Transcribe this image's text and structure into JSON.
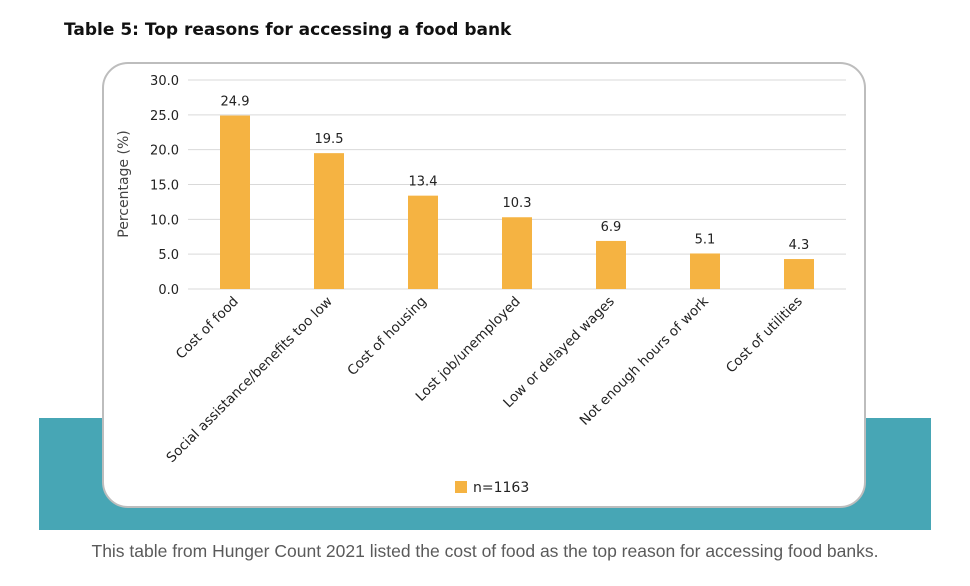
{
  "page": {
    "title": "Table 5: Top reasons for accessing a food bank",
    "caption": "This table from Hunger Count 2021 listed the cost of food as the top reason for accessing food banks."
  },
  "colors": {
    "bar": "#f5b342",
    "teal_band": "#47a6b5",
    "grid": "#d9d9d9",
    "text": "#222222"
  },
  "chart_data": {
    "type": "bar",
    "title": "",
    "xlabel": "",
    "ylabel": "Percentage (%)",
    "ylim": [
      0,
      30
    ],
    "yticks": [
      "0.0",
      "5.0",
      "10.0",
      "15.0",
      "20.0",
      "25.0",
      "30.0"
    ],
    "grid": true,
    "legend_position": "bottom",
    "categories": [
      "Cost of food",
      "Social assistance/benefits too low",
      "Cost of housing",
      "Lost job/unemployed",
      "Low or delayed wages",
      "Not enough hours of work",
      "Cost of utilities"
    ],
    "series": [
      {
        "name": "n=1163",
        "values": [
          24.9,
          19.5,
          13.4,
          10.3,
          6.9,
          5.1,
          4.3
        ],
        "labels": [
          "24.9",
          "19.5",
          "13.4",
          "10.3",
          "6.9",
          "5.1",
          "4.3"
        ]
      }
    ]
  }
}
